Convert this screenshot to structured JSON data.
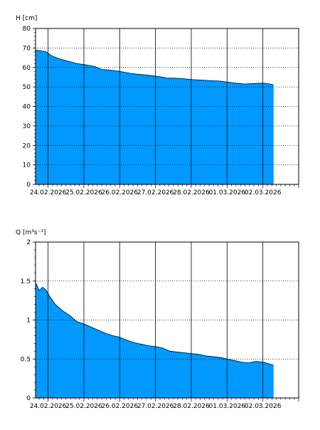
{
  "charts": [
    {
      "type": "area",
      "ylabel": "H [cm]",
      "ylim": [
        0,
        80
      ],
      "yticks": [
        0,
        10,
        20,
        30,
        40,
        50,
        60,
        70,
        80
      ],
      "x_dates": [
        "24.02.2026",
        "25.02.2026",
        "26.02.2026",
        "27.02.2026",
        "28.02.2026",
        "01.03.2026",
        "02.03.2026"
      ],
      "xlim_days": [
        -0.35,
        7.0
      ],
      "fill_color": "#0099ff",
      "grid": {
        "vertical": "solid",
        "horizontal": "dotted"
      },
      "series": [
        {
          "days": [
            -0.35,
            -0.2,
            -0.05,
            0.1,
            0.3,
            0.5,
            0.8,
            1.0,
            1.3,
            1.5,
            1.8,
            2.0,
            2.3,
            2.5,
            2.8,
            3.0,
            3.2,
            3.3,
            3.5,
            3.8,
            4.0,
            4.3,
            4.5,
            4.8,
            5.0,
            5.3,
            5.5,
            5.8,
            6.0,
            6.2,
            6.3
          ],
          "values": [
            69,
            68.5,
            68,
            66,
            64.5,
            63.5,
            62,
            61.5,
            60.5,
            59,
            58.5,
            58,
            57,
            56.5,
            56,
            55.5,
            55,
            54.5,
            54.5,
            54.2,
            53.8,
            53.5,
            53.3,
            53,
            52.5,
            51.8,
            51.5,
            51.8,
            52,
            51.5,
            51
          ]
        }
      ]
    },
    {
      "type": "area",
      "ylabel": "Q [m³s⁻¹]",
      "ylim": [
        0,
        2
      ],
      "yticks": [
        0,
        0.5,
        1,
        1.5,
        2
      ],
      "ytick_labels": [
        "0",
        "0.5",
        "1",
        "1.5",
        "2"
      ],
      "x_dates": [
        "24.02.2026",
        "25.02.2026",
        "26.02.2026",
        "27.02.2026",
        "28.02.2026",
        "01.03.2026",
        "02.03.2026"
      ],
      "xlim_days": [
        -0.35,
        7.0
      ],
      "fill_color": "#0099ff",
      "grid": {
        "vertical": "solid",
        "horizontal": "dotted"
      },
      "series": [
        {
          "days": [
            -0.35,
            -0.25,
            -0.15,
            -0.05,
            0.05,
            0.2,
            0.4,
            0.6,
            0.8,
            1.0,
            1.2,
            1.4,
            1.6,
            1.8,
            2.0,
            2.2,
            2.4,
            2.6,
            2.8,
            3.0,
            3.2,
            3.4,
            3.6,
            3.8,
            4.0,
            4.2,
            4.4,
            4.6,
            4.8,
            5.0,
            5.2,
            5.4,
            5.6,
            5.8,
            6.0,
            6.15,
            6.3
          ],
          "values": [
            1.48,
            1.38,
            1.42,
            1.38,
            1.3,
            1.2,
            1.12,
            1.06,
            0.98,
            0.95,
            0.91,
            0.87,
            0.83,
            0.8,
            0.78,
            0.74,
            0.71,
            0.69,
            0.67,
            0.66,
            0.64,
            0.6,
            0.59,
            0.58,
            0.57,
            0.56,
            0.54,
            0.53,
            0.52,
            0.5,
            0.48,
            0.46,
            0.45,
            0.47,
            0.46,
            0.44,
            0.42
          ]
        }
      ]
    }
  ]
}
